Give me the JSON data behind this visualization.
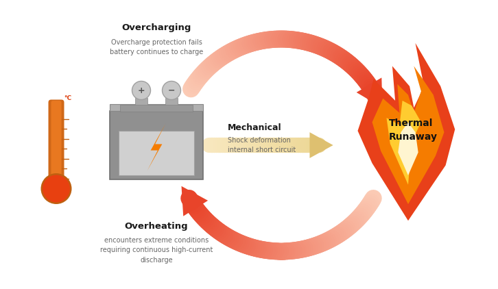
{
  "bg_color": "#ffffff",
  "figsize": [
    7.26,
    4.22
  ],
  "dpi": 100,
  "overcharging_title": "Overcharging",
  "overcharging_desc": "Overcharge protection fails\nbattery continues to charge",
  "overheating_title": "Overheating",
  "overheating_desc": "encounters extreme conditions\nrequiring continuous high-current\ndischarge",
  "mechanical_title": "Mechanical",
  "mechanical_desc": "Shock deformation\ninternal short circuit",
  "thermal_title": "Thermal\nRunaway",
  "arrow_red": "#E8442A",
  "arrow_light": "#FBCBB5",
  "arrow_white": "#ffffff",
  "flame_outer": "#E8401A",
  "flame_mid": "#F57C00",
  "flame_orange": "#FFA040",
  "flame_yellow": "#FFD060",
  "flame_cream": "#FFF5C0",
  "therm_orange": "#E87820",
  "therm_red": "#E84010",
  "bat_dark": "#808080",
  "bat_mid": "#999999",
  "bat_light": "#C0C0C0",
  "bat_silver": "#B8B8B8",
  "text_dark": "#1a1a1a",
  "text_gray": "#666666",
  "mid_arrow_color1": "#F5DFA0",
  "mid_arrow_color2": "#EDD090"
}
